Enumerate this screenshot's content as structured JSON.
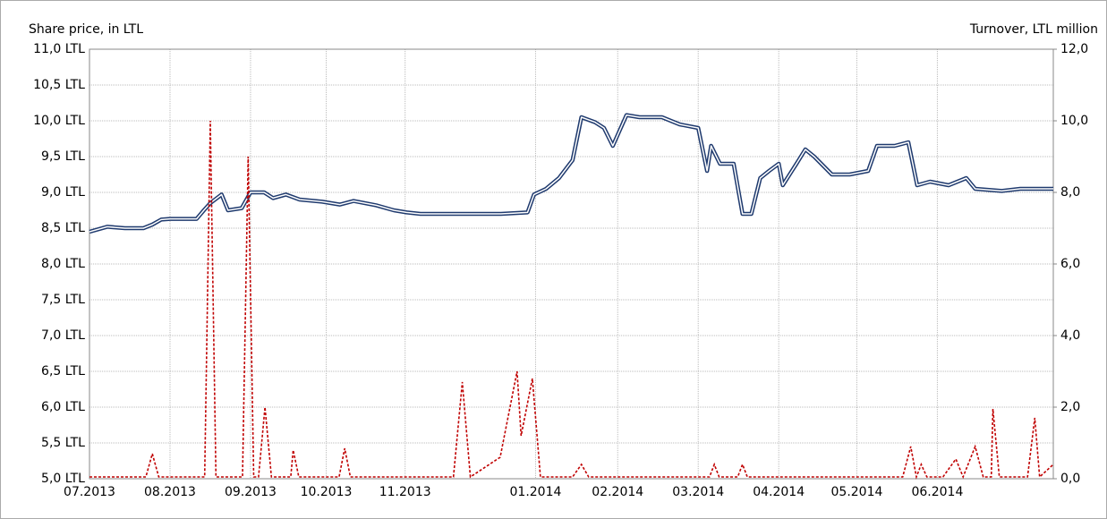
{
  "chart_data": {
    "type": "line",
    "y_label": "Share price, in LTL",
    "y2_label": "Turnover, LTL million",
    "xlim": [
      0,
      11.97
    ],
    "xticks": [
      {
        "value": 0,
        "label": "07.2013"
      },
      {
        "value": 1,
        "label": "08.2013"
      },
      {
        "value": 2,
        "label": "09.2013"
      },
      {
        "value": 2.94,
        "label": "10.2013"
      },
      {
        "value": 3.92,
        "label": "11.2013"
      },
      {
        "value": 5.54,
        "label": "01.2014"
      },
      {
        "value": 6.56,
        "label": "02.2014"
      },
      {
        "value": 7.56,
        "label": "03.2014"
      },
      {
        "value": 8.56,
        "label": "04.2014"
      },
      {
        "value": 9.53,
        "label": "05.2014"
      },
      {
        "value": 10.53,
        "label": "06.2014"
      }
    ],
    "ylim": [
      5,
      11
    ],
    "yticks": [
      {
        "value": 5,
        "label": "5,0 LTL"
      },
      {
        "value": 5.5,
        "label": "5,5 LTL"
      },
      {
        "value": 6,
        "label": "6,0 LTL"
      },
      {
        "value": 6.5,
        "label": "6,5 LTL"
      },
      {
        "value": 7,
        "label": "7,0 LTL"
      },
      {
        "value": 7.5,
        "label": "7,5 LTL"
      },
      {
        "value": 8,
        "label": "8,0 LTL"
      },
      {
        "value": 8.5,
        "label": "8,5 LTL"
      },
      {
        "value": 9,
        "label": "9,0 LTL"
      },
      {
        "value": 9.5,
        "label": "9,5 LTL"
      },
      {
        "value": 10,
        "label": "10,0 LTL"
      },
      {
        "value": 10.5,
        "label": "10,5 LTL"
      },
      {
        "value": 11,
        "label": "11,0 LTL"
      }
    ],
    "y2lim": [
      0,
      12
    ],
    "y2ticks": [
      {
        "value": 0,
        "label": "0,0"
      },
      {
        "value": 2,
        "label": "2,0"
      },
      {
        "value": 4,
        "label": "4,0"
      },
      {
        "value": 6,
        "label": "6,0"
      },
      {
        "value": 8,
        "label": "8,0"
      },
      {
        "value": 10,
        "label": "10,0"
      },
      {
        "value": 12,
        "label": "12,0"
      }
    ],
    "grid": true,
    "series": [
      {
        "color": "#1f3a6e",
        "style": "double",
        "x": [
          0,
          0.22,
          0.44,
          0.67,
          0.78,
          0.89,
          1.0,
          1.33,
          1.42,
          1.5,
          1.64,
          1.72,
          1.89,
          2.0,
          2.17,
          2.28,
          2.44,
          2.61,
          2.89,
          3.11,
          3.28,
          3.56,
          3.78,
          3.94,
          4.11,
          4.44,
          4.78,
          5.11,
          5.44,
          5.52,
          5.67,
          5.83,
          6.0,
          6.11,
          6.28,
          6.39,
          6.5,
          6.67,
          6.83,
          7.11,
          7.33,
          7.56,
          7.67,
          7.72,
          7.83,
          8.0,
          8.11,
          8.22,
          8.33,
          8.44,
          8.56,
          8.61,
          8.78,
          8.89,
          9.0,
          9.22,
          9.44,
          9.67,
          9.78,
          10.0,
          10.17,
          10.28,
          10.44,
          10.67,
          10.89,
          11.0,
          11.33,
          11.56,
          11.78,
          11.97
        ],
        "values": [
          8.45,
          8.52,
          8.5,
          8.5,
          8.55,
          8.62,
          8.63,
          8.63,
          8.75,
          8.85,
          8.97,
          8.75,
          8.78,
          9.0,
          9.0,
          8.92,
          8.97,
          8.9,
          8.87,
          8.83,
          8.88,
          8.82,
          8.75,
          8.72,
          8.7,
          8.7,
          8.7,
          8.7,
          8.72,
          8.97,
          9.05,
          9.2,
          9.45,
          10.05,
          9.98,
          9.9,
          9.65,
          10.08,
          10.05,
          10.05,
          9.95,
          9.9,
          9.3,
          9.65,
          9.4,
          9.4,
          8.7,
          8.7,
          9.2,
          9.3,
          9.4,
          9.1,
          9.4,
          9.6,
          9.5,
          9.25,
          9.25,
          9.3,
          9.65,
          9.65,
          9.7,
          9.1,
          9.15,
          9.1,
          9.2,
          9.05,
          9.02,
          9.05,
          9.05,
          9.05
        ]
      },
      {
        "color": "#c00000",
        "style": "dashed",
        "axis": "y2",
        "x": [
          0,
          0.7,
          0.78,
          0.86,
          1.43,
          1.5,
          1.57,
          1.9,
          1.97,
          2.04,
          2.1,
          2.18,
          2.26,
          2.5,
          2.53,
          2.6,
          3.1,
          3.17,
          3.24,
          4.52,
          4.63,
          4.73,
          5.1,
          5.31,
          5.36,
          5.5,
          5.6,
          6.0,
          6.11,
          6.2,
          7.7,
          7.76,
          7.82,
          8.05,
          8.11,
          8.17,
          10.1,
          10.2,
          10.27,
          10.33,
          10.4,
          10.6,
          10.76,
          10.85,
          11.0,
          11.1,
          11.2,
          11.22,
          11.3,
          11.65,
          11.74,
          11.8,
          11.97
        ],
        "values": [
          0.05,
          0.05,
          0.7,
          0.05,
          0.05,
          10.0,
          0.05,
          0.05,
          9.0,
          0.05,
          0.05,
          2.0,
          0.05,
          0.05,
          0.8,
          0.05,
          0.05,
          0.85,
          0.05,
          0.05,
          2.7,
          0.05,
          0.6,
          3.0,
          1.2,
          2.8,
          0.05,
          0.05,
          0.4,
          0.05,
          0.05,
          0.4,
          0.05,
          0.05,
          0.4,
          0.05,
          0.05,
          0.9,
          0.05,
          0.4,
          0.05,
          0.05,
          0.55,
          0.05,
          0.9,
          0.05,
          0.05,
          1.95,
          0.05,
          0.05,
          1.7,
          0.05,
          0.4
        ]
      }
    ]
  }
}
